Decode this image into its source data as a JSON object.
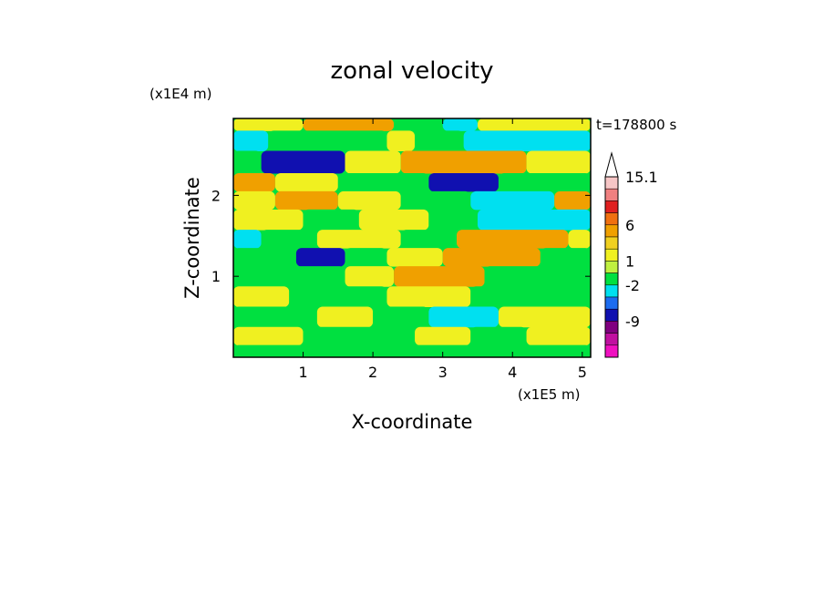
{
  "chart_data": {
    "type": "heatmap",
    "title": "zonal velocity",
    "time_label": "t=178800 s",
    "xlabel": "X-coordinate",
    "ylabel": "Z-coordinate",
    "x_scale_label": "(x1E5 m)",
    "y_scale_label": "(x1E4 m)",
    "xlim": [
      0,
      5.12
    ],
    "ylim": [
      0,
      2.95
    ],
    "x_ticks": [
      "1",
      "2",
      "3",
      "4",
      "5"
    ],
    "y_ticks": [
      "1",
      "2"
    ],
    "colorbar": {
      "labels": [
        "15.1",
        "6",
        "1",
        "-2",
        "-9"
      ],
      "colors": [
        "#ffffff",
        "#f7c6c6",
        "#f08080",
        "#e02020",
        "#f07010",
        "#f0a000",
        "#f0d020",
        "#f0f020",
        "#c0f040",
        "#00e040",
        "#00e0f0",
        "#1c6cf0",
        "#1010b0",
        "#800080",
        "#c010a0",
        "#f010c0"
      ]
    },
    "bands": [
      {
        "z": 2.9,
        "seg": [
          [
            0,
            1.0,
            "yellow"
          ],
          [
            1.0,
            2.3,
            "orange"
          ],
          [
            2.3,
            3.0,
            "green"
          ],
          [
            3.0,
            3.5,
            "cyan"
          ],
          [
            3.5,
            5.12,
            "yellow"
          ]
        ]
      },
      {
        "z": 2.7,
        "seg": [
          [
            0,
            0.5,
            "cyan"
          ],
          [
            0.5,
            2.2,
            "green"
          ],
          [
            2.2,
            2.6,
            "yellow"
          ],
          [
            2.6,
            3.3,
            "green"
          ],
          [
            3.3,
            5.12,
            "cyan"
          ]
        ]
      },
      {
        "z": 2.4,
        "seg": [
          [
            0,
            0.4,
            "green"
          ],
          [
            0.4,
            1.6,
            "navy"
          ],
          [
            1.6,
            2.4,
            "yellow"
          ],
          [
            2.4,
            4.2,
            "orange"
          ],
          [
            4.2,
            5.12,
            "yellow"
          ]
        ]
      },
      {
        "z": 2.15,
        "seg": [
          [
            0,
            0.6,
            "orange"
          ],
          [
            0.6,
            1.5,
            "yellow"
          ],
          [
            1.5,
            2.8,
            "green"
          ],
          [
            2.8,
            3.8,
            "navy"
          ],
          [
            3.8,
            5.12,
            "green"
          ]
        ]
      },
      {
        "z": 1.95,
        "seg": [
          [
            0,
            0.6,
            "yellow"
          ],
          [
            0.6,
            1.5,
            "orange"
          ],
          [
            1.5,
            2.4,
            "yellow"
          ],
          [
            2.4,
            3.4,
            "green"
          ],
          [
            3.4,
            4.6,
            "cyan"
          ],
          [
            4.6,
            5.12,
            "orange"
          ]
        ]
      },
      {
        "z": 1.7,
        "seg": [
          [
            0,
            1.0,
            "yellow"
          ],
          [
            1.0,
            1.8,
            "green"
          ],
          [
            1.8,
            2.8,
            "yellow"
          ],
          [
            2.8,
            3.5,
            "green"
          ],
          [
            3.5,
            5.12,
            "cyan"
          ]
        ]
      },
      {
        "z": 1.45,
        "seg": [
          [
            0,
            0.4,
            "cyan"
          ],
          [
            0.4,
            1.2,
            "green"
          ],
          [
            1.2,
            2.4,
            "yellow"
          ],
          [
            2.4,
            3.2,
            "green"
          ],
          [
            3.2,
            4.8,
            "orange"
          ],
          [
            4.8,
            5.12,
            "yellow"
          ]
        ]
      },
      {
        "z": 1.25,
        "seg": [
          [
            0,
            0.9,
            "green"
          ],
          [
            0.9,
            1.6,
            "navy"
          ],
          [
            1.6,
            2.2,
            "green"
          ],
          [
            2.2,
            3.0,
            "yellow"
          ],
          [
            3.0,
            4.4,
            "orange"
          ],
          [
            4.4,
            5.12,
            "green"
          ]
        ]
      },
      {
        "z": 1.0,
        "seg": [
          [
            0,
            1.6,
            "green"
          ],
          [
            1.6,
            2.3,
            "yellow"
          ],
          [
            2.3,
            3.6,
            "orange"
          ],
          [
            3.6,
            5.12,
            "green"
          ]
        ]
      },
      {
        "z": 0.75,
        "seg": [
          [
            0,
            0.8,
            "yellow"
          ],
          [
            0.8,
            2.2,
            "green"
          ],
          [
            2.2,
            3.4,
            "yellow"
          ],
          [
            3.4,
            5.12,
            "green"
          ]
        ]
      },
      {
        "z": 0.5,
        "seg": [
          [
            0,
            1.2,
            "green"
          ],
          [
            1.2,
            2.0,
            "yellow"
          ],
          [
            2.0,
            2.8,
            "green"
          ],
          [
            2.8,
            3.8,
            "cyan"
          ],
          [
            3.8,
            5.12,
            "yellow"
          ]
        ]
      },
      {
        "z": 0.25,
        "seg": [
          [
            0,
            1.0,
            "yellow"
          ],
          [
            1.0,
            2.6,
            "green"
          ],
          [
            2.6,
            3.4,
            "yellow"
          ],
          [
            3.4,
            4.2,
            "green"
          ],
          [
            4.2,
            5.12,
            "yellow"
          ]
        ]
      },
      {
        "z": 0.05,
        "seg": [
          [
            0,
            5.12,
            "green"
          ]
        ]
      }
    ]
  }
}
